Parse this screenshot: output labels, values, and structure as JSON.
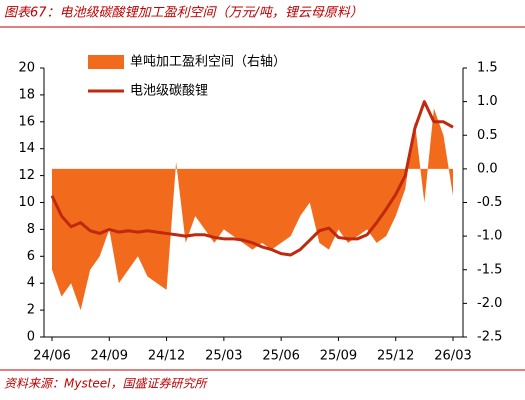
{
  "chart_data": {
    "type": "line",
    "title": "图表67：电池级碳酸锂加工盈利空间（万元/吨，锂云母原料）",
    "source": "资料来源：Mysteel，国盛证券研究所",
    "categories": [
      "24/06",
      null,
      null,
      null,
      null,
      null,
      "24/09",
      null,
      null,
      null,
      null,
      null,
      "24/12",
      null,
      null,
      null,
      null,
      null,
      "25/03",
      null,
      null,
      null,
      null,
      null,
      "25/06",
      null,
      null,
      null,
      null,
      null,
      "25/09",
      null,
      null,
      null,
      null,
      null,
      "25/12",
      null,
      null,
      null,
      null,
      null,
      "26/03"
    ],
    "series": [
      {
        "name": "单吨加工盈利空间（右轴）",
        "type": "area",
        "axis": "y2",
        "color": "#f26b1d",
        "values": [
          -1.5,
          -1.9,
          -1.7,
          -2.1,
          -1.5,
          -1.3,
          -0.9,
          -1.7,
          -1.5,
          -1.3,
          -1.6,
          -1.7,
          -1.8,
          0.1,
          -1.1,
          -0.7,
          -0.9,
          -1.1,
          -0.9,
          -1.0,
          -1.1,
          -1.2,
          -1.1,
          -1.2,
          -1.1,
          -1.0,
          -0.7,
          -0.5,
          -1.1,
          -1.2,
          -0.9,
          -1.1,
          -1.0,
          -0.9,
          -1.1,
          -1.0,
          -0.7,
          -0.3,
          0.7,
          -0.5,
          0.9,
          0.5,
          -0.4
        ]
      },
      {
        "name": "电池级碳酸锂",
        "type": "line",
        "color": "#c0290e",
        "values": [
          10.5,
          9.0,
          8.2,
          8.5,
          7.9,
          7.7,
          8.0,
          7.8,
          7.9,
          7.8,
          7.9,
          7.8,
          7.7,
          7.6,
          7.5,
          7.6,
          7.6,
          7.4,
          7.3,
          7.3,
          7.2,
          7.0,
          6.7,
          6.5,
          6.2,
          6.1,
          6.5,
          7.2,
          7.9,
          8.1,
          7.4,
          7.3,
          7.3,
          7.6,
          8.5,
          9.5,
          10.6,
          12.0,
          15.5,
          17.5,
          16.0,
          16.0,
          15.6
        ]
      }
    ],
    "ylim": [
      0,
      20
    ],
    "yticks": [
      0,
      2,
      4,
      6,
      8,
      10,
      12,
      14,
      16,
      18,
      20
    ],
    "y2lim": [
      -2.5,
      1.5
    ],
    "y2ticks": [
      -2.5,
      {
        "value": -2,
        "label": "-2.0"
      },
      -1.5,
      {
        "value": -1,
        "label": "-1.0"
      },
      -0.5,
      {
        "value": 0,
        "label": "0.0"
      },
      0.5,
      {
        "value": 1,
        "label": "1.0"
      },
      1.5
    ]
  }
}
